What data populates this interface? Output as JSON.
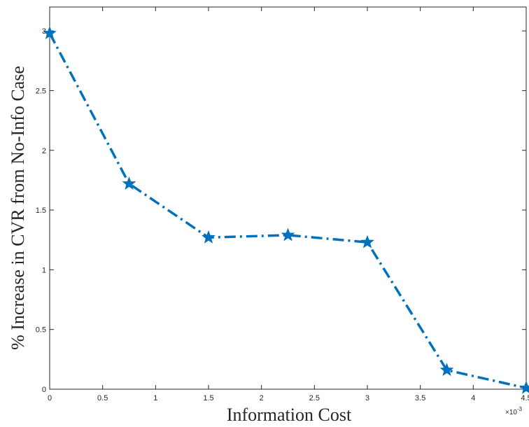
{
  "chart_data": {
    "type": "line",
    "xlabel": "Information Cost",
    "ylabel": "% Increase in CVR from No-Info Case",
    "x_exponent_label": "×10",
    "x_exponent_power": "-3",
    "xlim": [
      0,
      4.5
    ],
    "ylim": [
      0,
      3.2
    ],
    "x_ticks": [
      "0",
      "0.5",
      "1",
      "1.5",
      "2",
      "2.5",
      "3",
      "3.5",
      "4",
      "4.5"
    ],
    "y_ticks": [
      "0",
      "0.5",
      "1",
      "1.5",
      "2",
      "2.5",
      "3"
    ],
    "grid": false,
    "series": [
      {
        "x": [
          0,
          0.75,
          1.5,
          2.25,
          3,
          3.75,
          4.5
        ],
        "y": [
          2.98,
          1.72,
          1.27,
          1.29,
          1.23,
          0.16,
          0.01
        ],
        "color": "#0072BD",
        "line_style": "dash-dot",
        "marker": "pentagram"
      }
    ]
  }
}
